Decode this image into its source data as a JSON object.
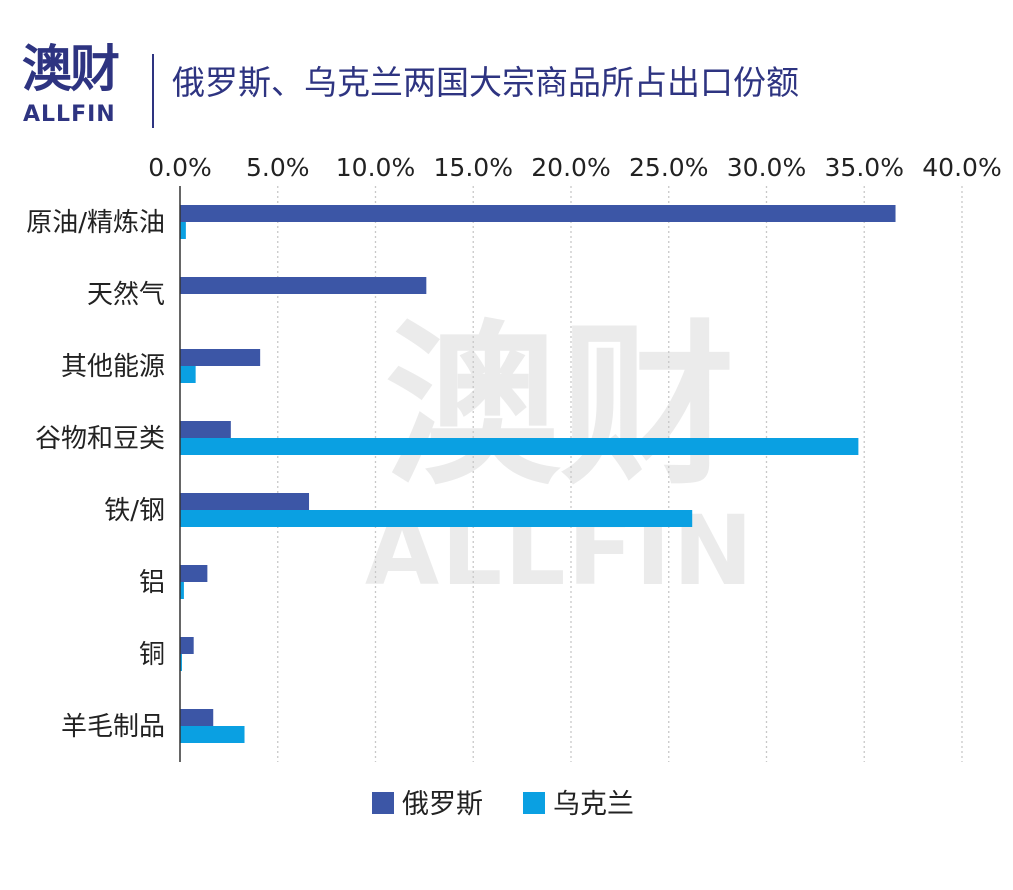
{
  "header": {
    "logo_cn": "澳财",
    "logo_en": "ALLFIN",
    "title": "俄罗斯、乌克兰两国大宗商品所占出口份额"
  },
  "watermark": {
    "cn": "澳财",
    "en": "ALLFIN"
  },
  "colors": {
    "russia": "#3c56a6",
    "ukraine": "#0aa0e2",
    "brand": "#2e3481",
    "grid": "#c8c8c8"
  },
  "chart_data": {
    "type": "bar",
    "orientation": "horizontal",
    "xaxis_position": "top",
    "categories": [
      "原油/精炼油",
      "天然气",
      "其他能源",
      "谷物和豆类",
      "铁/钢",
      "铝",
      "铜",
      "羊毛制品"
    ],
    "series": [
      {
        "name": "俄罗斯",
        "values": [
          36.6,
          12.6,
          4.1,
          2.6,
          6.6,
          1.4,
          0.7,
          1.7
        ]
      },
      {
        "name": "乌克兰",
        "values": [
          0.3,
          0.0,
          0.8,
          34.7,
          26.2,
          0.2,
          0.1,
          3.3
        ]
      }
    ],
    "xlim": [
      0,
      40
    ],
    "xticks": [
      "0.0%",
      "5.0%",
      "10.0%",
      "15.0%",
      "20.0%",
      "25.0%",
      "30.0%",
      "35.0%",
      "40.0%"
    ],
    "grid": "vertical-dotted",
    "legend": "bottom"
  }
}
